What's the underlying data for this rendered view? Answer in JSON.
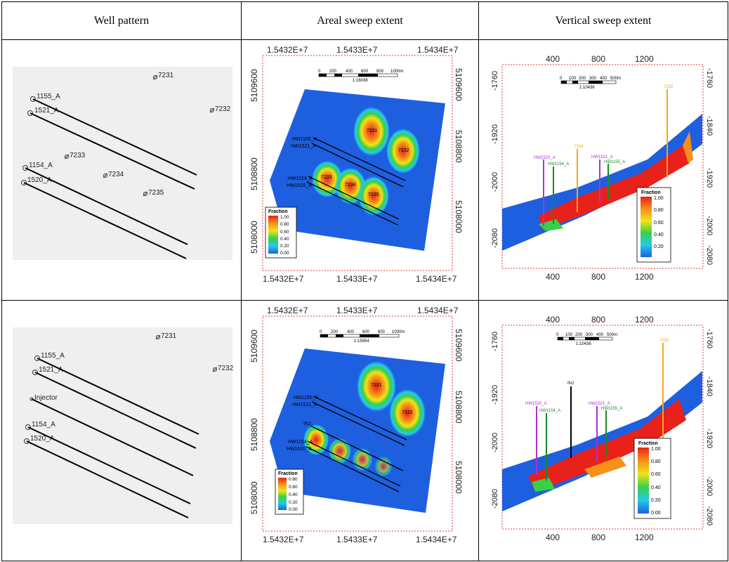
{
  "headers": {
    "col1": "Well pattern",
    "col2": "Areal sweep extent",
    "col3": "Vertical sweep extent"
  },
  "row1": {
    "wells": {
      "w7231": "7231",
      "w7232": "7232",
      "w7233": "7233",
      "w7234": "7234",
      "w7235": "7235",
      "w1155": "1155_A",
      "w1521": "1521_A",
      "w1154": "1154_A",
      "w1520": "1520_A"
    },
    "areal": {
      "x_ticks": [
        "1.5432E+7",
        "1.5433E+7",
        "1.5434E+7"
      ],
      "y_ticks": [
        "5109600",
        "5108800",
        "5108000"
      ],
      "scale_ticks": [
        "0",
        "200",
        "400",
        "600",
        "800",
        "1000m"
      ],
      "scale_ratio": "1:16038",
      "well_labels": [
        "HW1155_A",
        "HW1521_A",
        "HW1154_A",
        "HW1520_A"
      ],
      "blob_labels": [
        "7231",
        "7232",
        "7233",
        "7234",
        "7235"
      ],
      "legend_title": "Fraction",
      "legend_ticks": [
        "1.00",
        "0.80",
        "0.60",
        "0.40",
        "0.20",
        "0.00"
      ]
    },
    "vertical": {
      "x_ticks": [
        "400",
        "800",
        "1200"
      ],
      "y_ticks": [
        "-1760",
        "-1840",
        "-1920",
        "-2000",
        "-2080"
      ],
      "scale_ticks": [
        "0",
        "100",
        "200",
        "300",
        "400",
        "500m"
      ],
      "scale_ratio": "1:10436",
      "well_labels": [
        "HW1520_A",
        "HW1154_A",
        "7234",
        "HW1521_A",
        "HW1155_A",
        "7232"
      ],
      "legend_title": "Fraction",
      "legend_ticks": [
        "1.00",
        "0.80",
        "0.60",
        "0.40",
        "0.20"
      ]
    }
  },
  "row2": {
    "wells": {
      "w7231": "7231",
      "w7232": "7232",
      "w1155": "1155_A",
      "w1521": "1521_A",
      "inj": "Injector",
      "w1154": "1154_A",
      "w1520": "1520_A"
    },
    "areal": {
      "x_ticks": [
        "1.5432E+7",
        "1.5433E+7",
        "1.5434E+7"
      ],
      "y_ticks": [
        "5109600",
        "5108800",
        "5108000"
      ],
      "scale_ticks": [
        "0",
        "200",
        "400",
        "600",
        "800",
        "1000m"
      ],
      "scale_ratio": "1:15954",
      "well_labels": [
        "HW1155_A",
        "HW1521_A",
        "INJ",
        "HW1154_A",
        "HW1520_A"
      ],
      "blob_labels": [
        "7231",
        "7232"
      ],
      "legend_title": "Fraction",
      "legend_ticks": [
        "0.80",
        "0.60",
        "0.40",
        "0.20",
        "0.00"
      ]
    },
    "vertical": {
      "x_ticks": [
        "400",
        "800",
        "1200"
      ],
      "y_ticks": [
        "-1760",
        "-1840",
        "-1920",
        "-2000",
        "-2080"
      ],
      "scale_ticks": [
        "0",
        "100",
        "200",
        "300",
        "400",
        "500m"
      ],
      "scale_ratio": "1:10436",
      "well_labels": [
        "HW1520_A",
        "HW1154_A",
        "INJ",
        "HW1521_A",
        "HW1155_A",
        "7232"
      ],
      "legend_title": "Fraction",
      "legend_ticks": [
        "1.00",
        "0.80",
        "0.60",
        "0.40",
        "0.20",
        "0.00"
      ]
    }
  },
  "colors": {
    "blue": "#1e5fe0",
    "cyan": "#26c9e8",
    "green": "#38d048",
    "yellow": "#f2e21a",
    "orange": "#f59018",
    "red": "#e8211a",
    "axis_red": "#e23838"
  }
}
